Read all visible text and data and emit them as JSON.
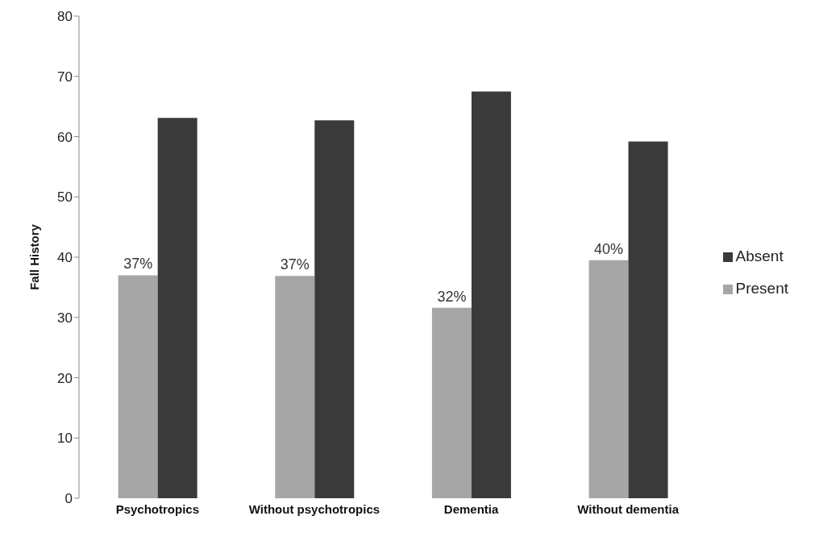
{
  "chart_data": {
    "type": "bar",
    "ylabel": "Fall History",
    "categories": [
      "Psychotropics",
      "Without psychotropics",
      "Dementia",
      "Without dementia"
    ],
    "series": [
      {
        "name": "Present",
        "color": "#a6a6a6",
        "values": [
          37,
          36.9,
          31.6,
          39.5
        ],
        "value_labels": [
          "37%",
          "37%",
          "32%",
          "40%"
        ]
      },
      {
        "name": "Absent",
        "color": "#3a3a3a",
        "values": [
          63.1,
          62.7,
          67.5,
          59.2
        ]
      }
    ],
    "ylim": [
      0,
      80
    ],
    "yticks": [
      0,
      10,
      20,
      30,
      40,
      50,
      60,
      70,
      80
    ],
    "grid": false,
    "legend": "right"
  }
}
